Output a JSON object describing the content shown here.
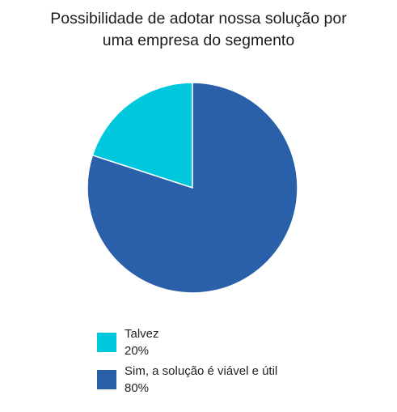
{
  "chart_data": {
    "type": "pie",
    "title": "Possibilidade de adotar nossa solução por uma empresa do segmento",
    "title_lines": [
      "Possibilidade de adotar nossa solução por",
      "uma empresa do segmento"
    ],
    "slices": [
      {
        "label": "Talvez",
        "value": 20,
        "value_label": "20%",
        "color": "#00C8DC"
      },
      {
        "label": "Sim, a solução é viável e útil",
        "value": 80,
        "value_label": "80%",
        "color": "#2A5FAA"
      }
    ],
    "legend_position": "bottom"
  }
}
